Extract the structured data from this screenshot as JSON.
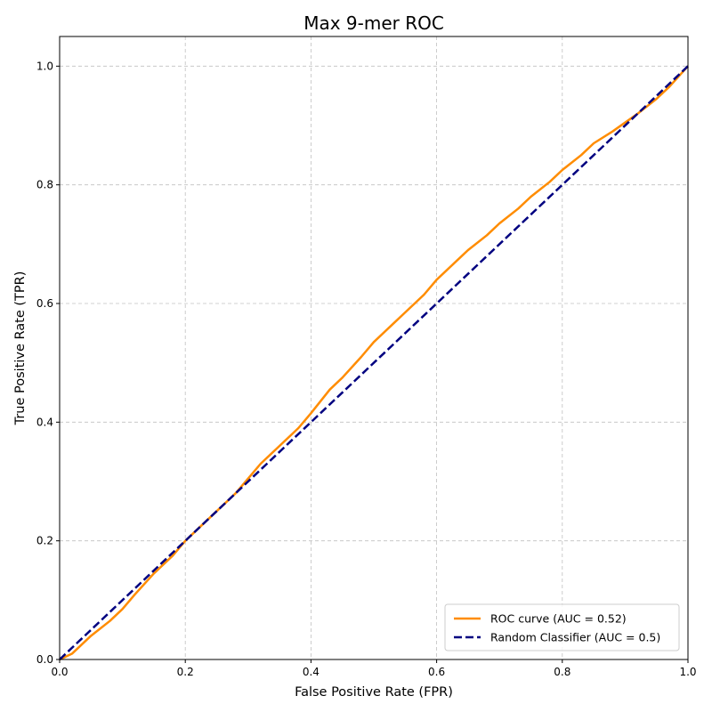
{
  "chart_data": {
    "type": "line",
    "title": "Max 9-mer ROC",
    "xlabel": "False Positive Rate (FPR)",
    "ylabel": "True Positive Rate (TPR)",
    "xlim": [
      0.0,
      1.0
    ],
    "ylim": [
      0.0,
      1.05
    ],
    "xticks": [
      "0.0",
      "0.2",
      "0.4",
      "0.6",
      "0.8",
      "1.0"
    ],
    "yticks": [
      "0.0",
      "0.2",
      "0.4",
      "0.6",
      "0.8",
      "1.0"
    ],
    "grid": true,
    "legend_position": "lower-right",
    "series": [
      {
        "name": "ROC curve (AUC = 0.52)",
        "color": "#ff8c00",
        "style": "solid",
        "x": [
          0.0,
          0.02,
          0.05,
          0.08,
          0.1,
          0.12,
          0.15,
          0.18,
          0.2,
          0.22,
          0.25,
          0.28,
          0.3,
          0.32,
          0.35,
          0.38,
          0.4,
          0.43,
          0.45,
          0.48,
          0.5,
          0.53,
          0.55,
          0.58,
          0.6,
          0.63,
          0.65,
          0.68,
          0.7,
          0.73,
          0.75,
          0.78,
          0.8,
          0.83,
          0.85,
          0.88,
          0.9,
          0.92,
          0.95,
          0.97,
          1.0
        ],
        "y": [
          0.0,
          0.01,
          0.04,
          0.065,
          0.085,
          0.11,
          0.145,
          0.175,
          0.2,
          0.22,
          0.25,
          0.28,
          0.305,
          0.33,
          0.36,
          0.39,
          0.415,
          0.455,
          0.475,
          0.51,
          0.535,
          0.565,
          0.585,
          0.615,
          0.64,
          0.67,
          0.69,
          0.715,
          0.735,
          0.76,
          0.78,
          0.805,
          0.825,
          0.85,
          0.87,
          0.89,
          0.905,
          0.92,
          0.945,
          0.965,
          1.0
        ]
      },
      {
        "name": "Random Classifier (AUC = 0.5)",
        "color": "#000080",
        "style": "dashed",
        "x": [
          0.0,
          1.0
        ],
        "y": [
          0.0,
          1.0
        ]
      }
    ]
  }
}
